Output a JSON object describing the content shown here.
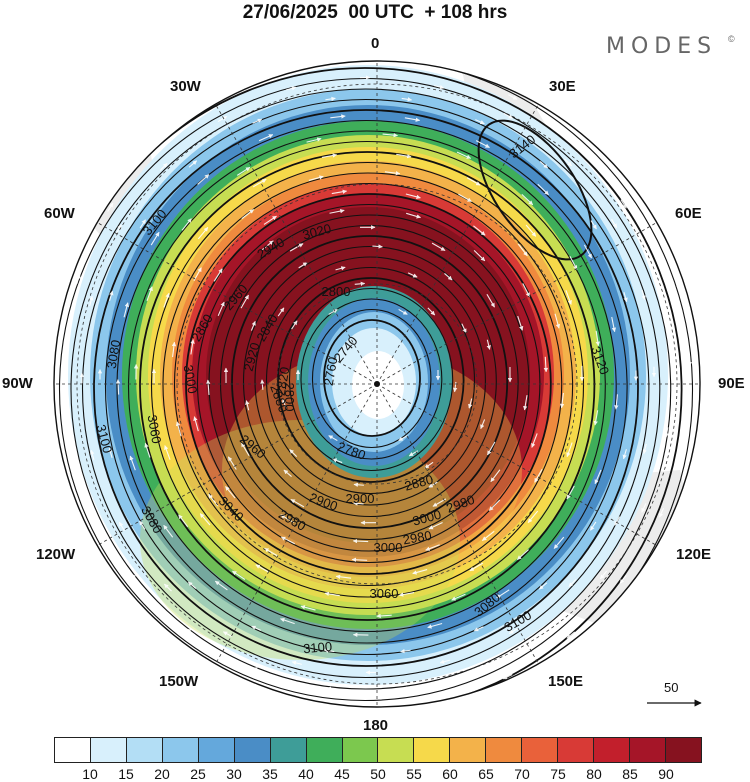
{
  "title": "27/06/2025  00 UTC  + 108 hrs",
  "brand": "MODES",
  "brand_mark": "©",
  "longitude_labels": {
    "n0": "0",
    "n30e": "30E",
    "n60e": "60E",
    "n90e": "90E",
    "n120e": "120E",
    "n150e": "150E",
    "n180": "180",
    "n150w": "150W",
    "n120w": "120W",
    "n90w": "90W",
    "n60w": "60W",
    "n30w": "30W"
  },
  "reference_vector_label": "50",
  "colorbar": {
    "colors": [
      "#ffffff",
      "#d8f0fc",
      "#b3def5",
      "#8cc7ec",
      "#64a8dc",
      "#4a8dc6",
      "#3e9d98",
      "#3fae5a",
      "#7cc84e",
      "#c7dd52",
      "#f6d94a",
      "#f3b24a",
      "#ef8a3e",
      "#e9613a",
      "#d83a36",
      "#c21f2c",
      "#a51528",
      "#86121f"
    ],
    "labels": [
      "10",
      "15",
      "20",
      "25",
      "30",
      "35",
      "40",
      "45",
      "50",
      "55",
      "60",
      "65",
      "70",
      "75",
      "80",
      "85",
      "90"
    ]
  },
  "map_layers": {
    "speed_bands": [
      "#d8f0fc",
      "#8cc7ec",
      "#4a8dc6",
      "#3fae5a",
      "#c7dd52",
      "#f6d94a",
      "#f3b24a",
      "#ef8a3e",
      "#d83a36",
      "#a51528",
      "#86121f"
    ],
    "inner_low_bands": [
      "#3e9d98",
      "#4a8dc6",
      "#8cc7ec",
      "#d8f0fc"
    ],
    "contour_labels": [
      "3140",
      "3120",
      "3100",
      "3100",
      "3100",
      "3100",
      "3080",
      "3080",
      "3080",
      "3060",
      "3060",
      "3040",
      "3020",
      "3000",
      "3000",
      "3000",
      "2980",
      "2980",
      "2980",
      "2960",
      "2960",
      "2940",
      "2920",
      "2900",
      "2900",
      "2880",
      "2880",
      "2860",
      "2840",
      "2820",
      "2800",
      "2800",
      "2780",
      "2760",
      "2740"
    ]
  }
}
